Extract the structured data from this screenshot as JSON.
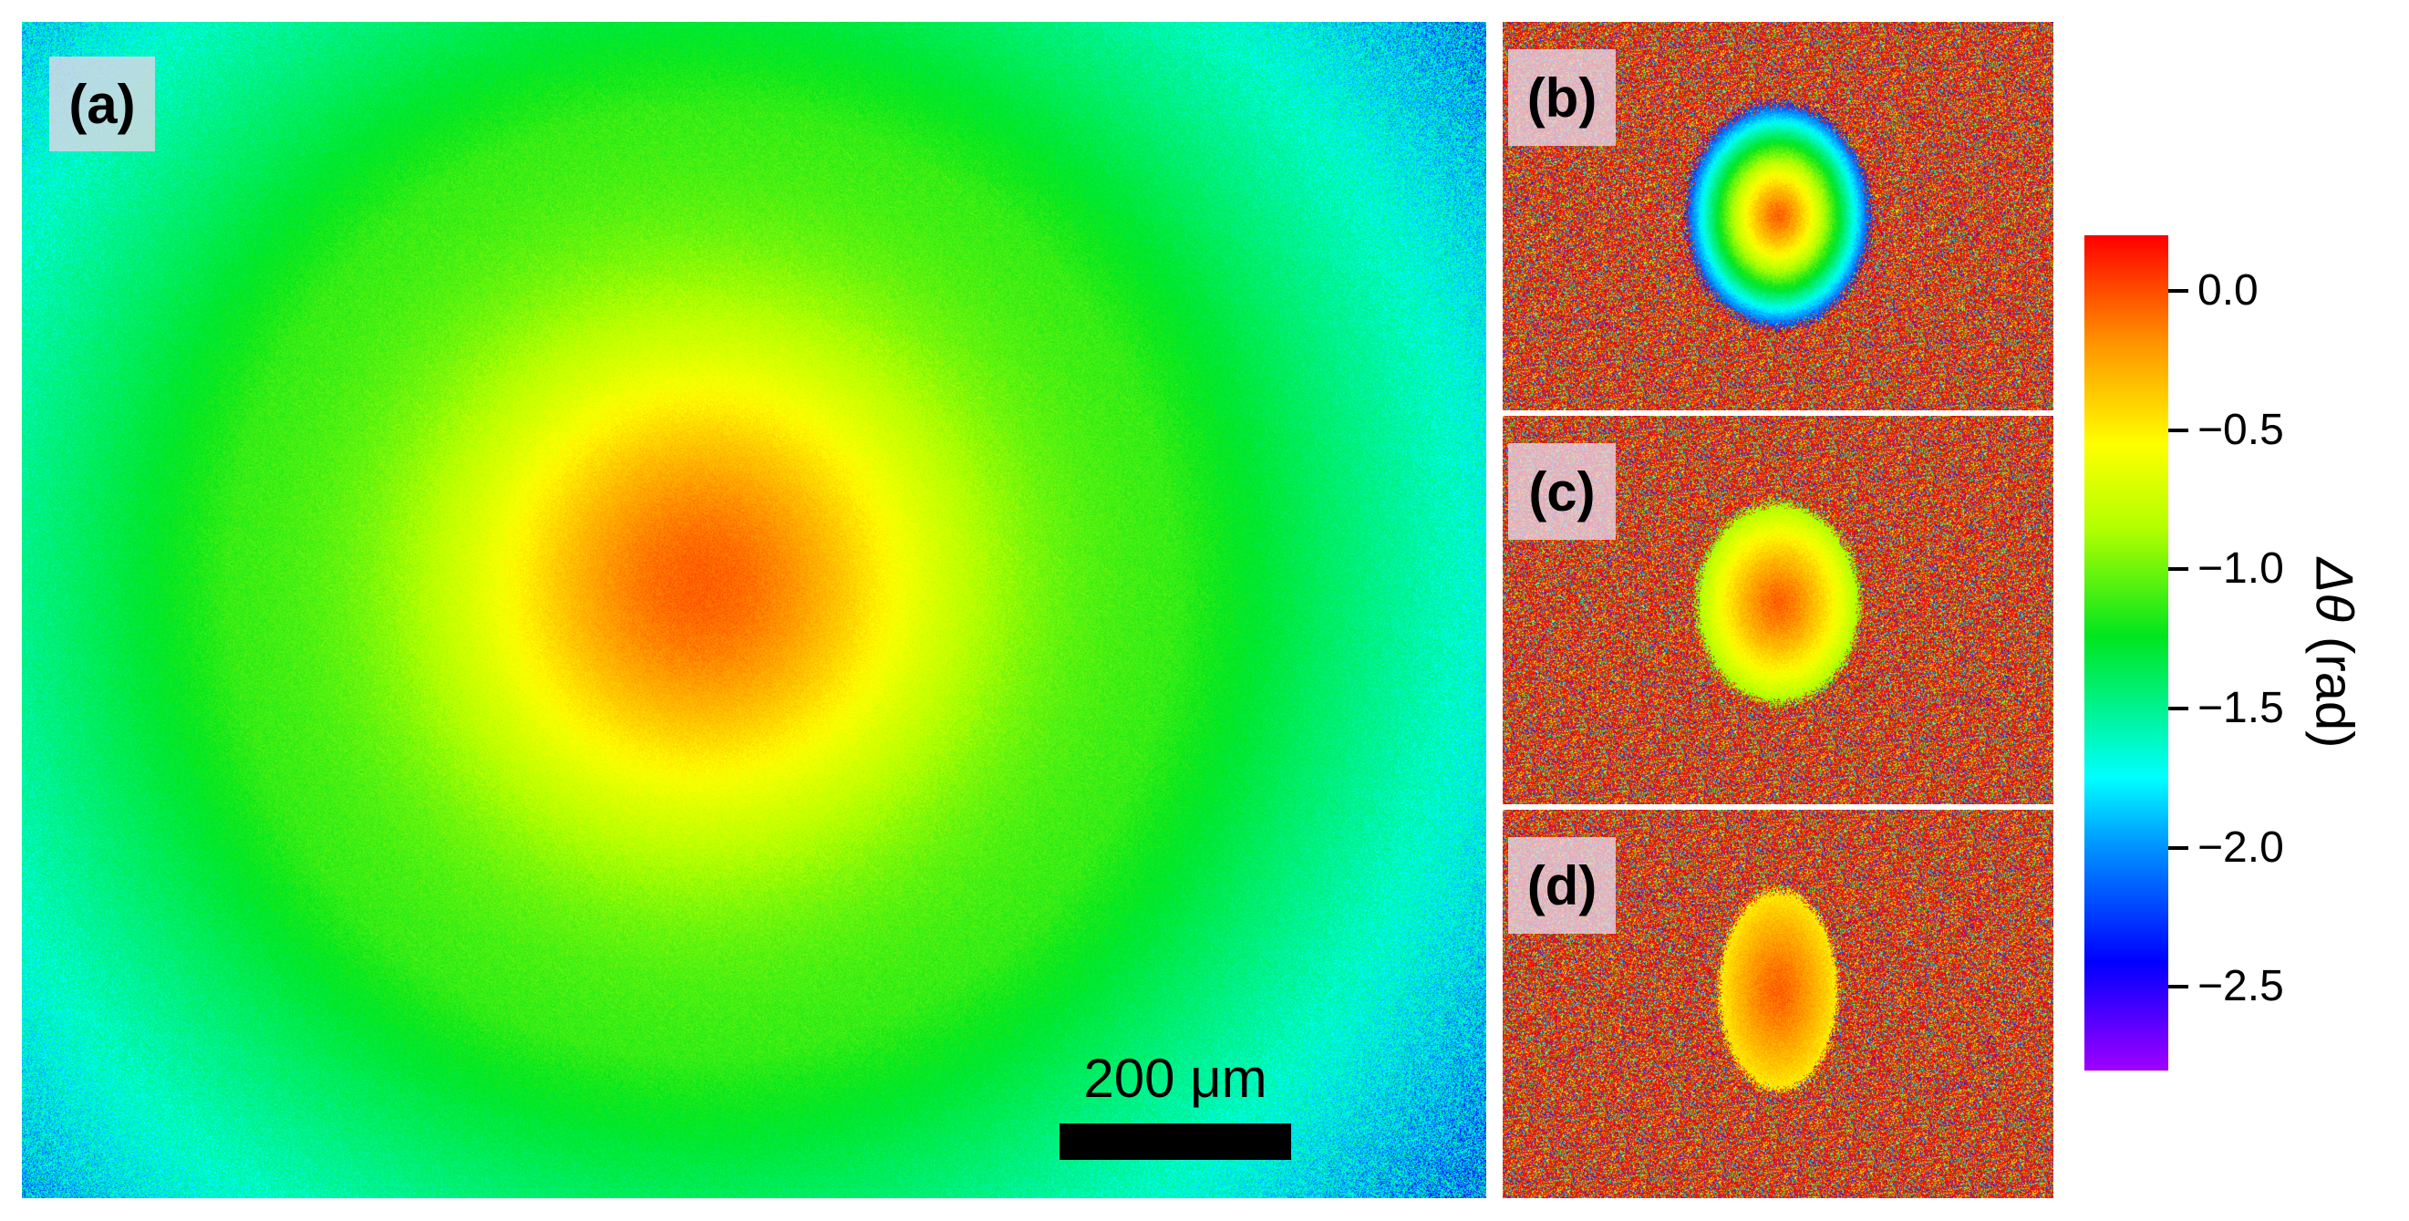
{
  "panels": {
    "a": {
      "label": "(a)"
    },
    "b": {
      "label": "(b)"
    },
    "c": {
      "label": "(c)"
    },
    "d": {
      "label": "(d)"
    }
  },
  "scale_bar": {
    "label": "200 μm"
  },
  "colorbar": {
    "title_symbol": "Δθ",
    "title_unit": " (rad)",
    "ticks": [
      {
        "label": "0.0",
        "value": 0.0
      },
      {
        "label": "−0.5",
        "value": -0.5
      },
      {
        "label": "−1.0",
        "value": -1.0
      },
      {
        "label": "−1.5",
        "value": -1.5
      },
      {
        "label": "−2.0",
        "value": -2.0
      },
      {
        "label": "−2.5",
        "value": -2.5
      }
    ],
    "range": [
      -2.8,
      0.2
    ],
    "colormap": "rainbow"
  }
}
